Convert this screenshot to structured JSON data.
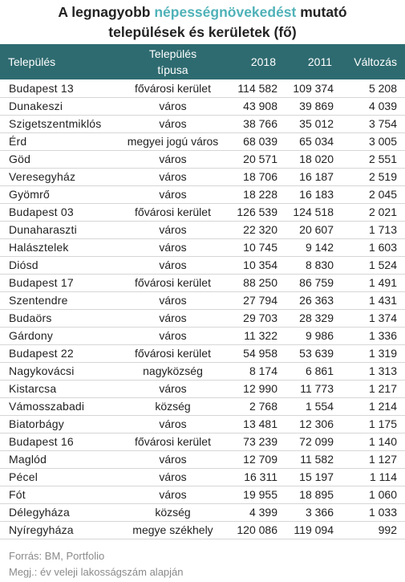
{
  "title": {
    "part1": "A legnagyobb ",
    "highlight": "népességnövekedést",
    "part2": " mutató",
    "line2": "települések és kerületek (fő)"
  },
  "accent_color": "#4fb2b8",
  "header_color": "#2e6b70",
  "table": {
    "headers": {
      "name": "Település",
      "type_line1": "Település",
      "type_line2": "típusa",
      "y2018": "2018",
      "y2011": "2011",
      "change": "Változás"
    },
    "rows": [
      {
        "name": "Budapest 13",
        "type": "fővárosi kerület",
        "y2018": "114 582",
        "y2011": "109 374",
        "change": "5 208"
      },
      {
        "name": "Dunakeszi",
        "type": "város",
        "y2018": "43 908",
        "y2011": "39 869",
        "change": "4 039"
      },
      {
        "name": "Szigetszentmiklós",
        "type": "város",
        "y2018": "38 766",
        "y2011": "35 012",
        "change": "3 754"
      },
      {
        "name": "Érd",
        "type": "megyei jogú város",
        "y2018": "68 039",
        "y2011": "65 034",
        "change": "3 005"
      },
      {
        "name": "Göd",
        "type": "város",
        "y2018": "20 571",
        "y2011": "18 020",
        "change": "2 551"
      },
      {
        "name": "Veresegyház",
        "type": "város",
        "y2018": "18 706",
        "y2011": "16 187",
        "change": "2 519"
      },
      {
        "name": "Gyömrő",
        "type": "város",
        "y2018": "18 228",
        "y2011": "16 183",
        "change": "2 045"
      },
      {
        "name": "Budapest 03",
        "type": "fővárosi kerület",
        "y2018": "126 539",
        "y2011": "124 518",
        "change": "2 021"
      },
      {
        "name": "Dunaharaszti",
        "type": "város",
        "y2018": "22 320",
        "y2011": "20 607",
        "change": "1 713"
      },
      {
        "name": "Halásztelek",
        "type": "város",
        "y2018": "10 745",
        "y2011": "9 142",
        "change": "1 603"
      },
      {
        "name": "Diósd",
        "type": "város",
        "y2018": "10 354",
        "y2011": "8 830",
        "change": "1 524"
      },
      {
        "name": "Budapest 17",
        "type": "fővárosi kerület",
        "y2018": "88 250",
        "y2011": "86 759",
        "change": "1 491"
      },
      {
        "name": "Szentendre",
        "type": "város",
        "y2018": "27 794",
        "y2011": "26 363",
        "change": "1 431"
      },
      {
        "name": "Budaörs",
        "type": "város",
        "y2018": "29 703",
        "y2011": "28 329",
        "change": "1 374"
      },
      {
        "name": "Gárdony",
        "type": "város",
        "y2018": "11 322",
        "y2011": "9 986",
        "change": "1 336"
      },
      {
        "name": "Budapest 22",
        "type": "fővárosi kerület",
        "y2018": "54 958",
        "y2011": "53 639",
        "change": "1 319"
      },
      {
        "name": "Nagykovácsi",
        "type": "nagyközség",
        "y2018": "8 174",
        "y2011": "6 861",
        "change": "1 313"
      },
      {
        "name": "Kistarcsa",
        "type": "város",
        "y2018": "12 990",
        "y2011": "11 773",
        "change": "1 217"
      },
      {
        "name": "Vámosszabadi",
        "type": "község",
        "y2018": "2 768",
        "y2011": "1 554",
        "change": "1 214"
      },
      {
        "name": "Biatorbágy",
        "type": "város",
        "y2018": "13 481",
        "y2011": "12 306",
        "change": "1 175"
      },
      {
        "name": "Budapest 16",
        "type": "fővárosi kerület",
        "y2018": "73 239",
        "y2011": "72 099",
        "change": "1 140"
      },
      {
        "name": "Maglód",
        "type": "város",
        "y2018": "12 709",
        "y2011": "11 582",
        "change": "1 127"
      },
      {
        "name": "Pécel",
        "type": "város",
        "y2018": "16 311",
        "y2011": "15 197",
        "change": "1 114"
      },
      {
        "name": "Fót",
        "type": "város",
        "y2018": "19 955",
        "y2011": "18 895",
        "change": "1 060"
      },
      {
        "name": "Délegyháza",
        "type": "község",
        "y2018": "4 399",
        "y2011": "3 366",
        "change": "1 033"
      },
      {
        "name": "Nyíregyháza",
        "type": "megye székhely",
        "y2018": "120 086",
        "y2011": "119 094",
        "change": "992"
      }
    ]
  },
  "footer": {
    "source": "Forrás: BM, Portfolio",
    "note": "Megj.:  év veleji lakosságszám alapján"
  }
}
